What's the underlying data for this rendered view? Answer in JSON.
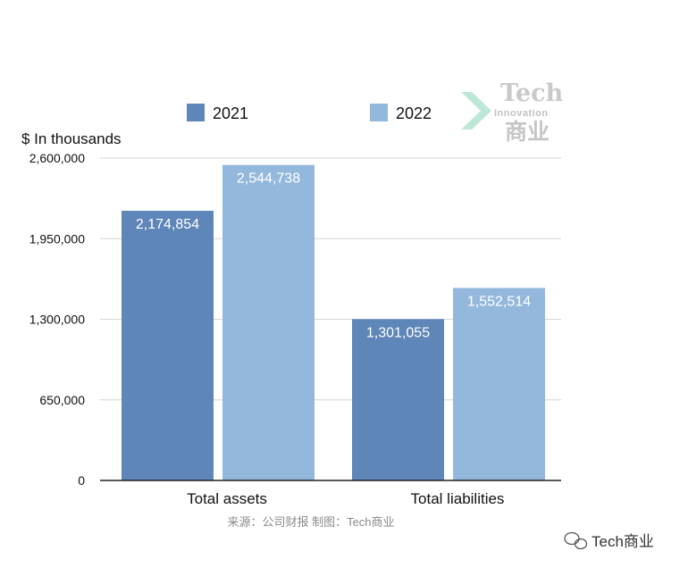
{
  "chart_data": {
    "type": "bar",
    "ylabel": "$ In thousands",
    "categories": [
      "Total assets",
      "Total liabilities"
    ],
    "series": [
      {
        "name": "2021",
        "color": "#5f86b8",
        "values": [
          2174854,
          1301055
        ],
        "labels": [
          "2,174,854",
          "1,301,055"
        ]
      },
      {
        "name": "2022",
        "color": "#94b8dc",
        "values": [
          2544738,
          1552514
        ],
        "labels": [
          "2,544,738",
          "1,552,514"
        ]
      }
    ],
    "ylim": [
      0,
      2600000
    ],
    "yticks": [
      0,
      650000,
      1300000,
      1950000,
      2600000
    ],
    "ytick_labels": [
      "0",
      "650,000",
      "1,300,000",
      "1,950,000",
      "2,600,000"
    ],
    "grid": true,
    "legend_position": "top"
  },
  "source": "来源：公司财报 制图：Tech商业",
  "watermark": {
    "line1": "Tech",
    "line2": "Innovation",
    "line3": "商业"
  },
  "footer_account": "Tech商业",
  "colors": {
    "grid": "#d4d4d4",
    "axis": "#222222",
    "watermark_accent": "#bde7d6"
  }
}
